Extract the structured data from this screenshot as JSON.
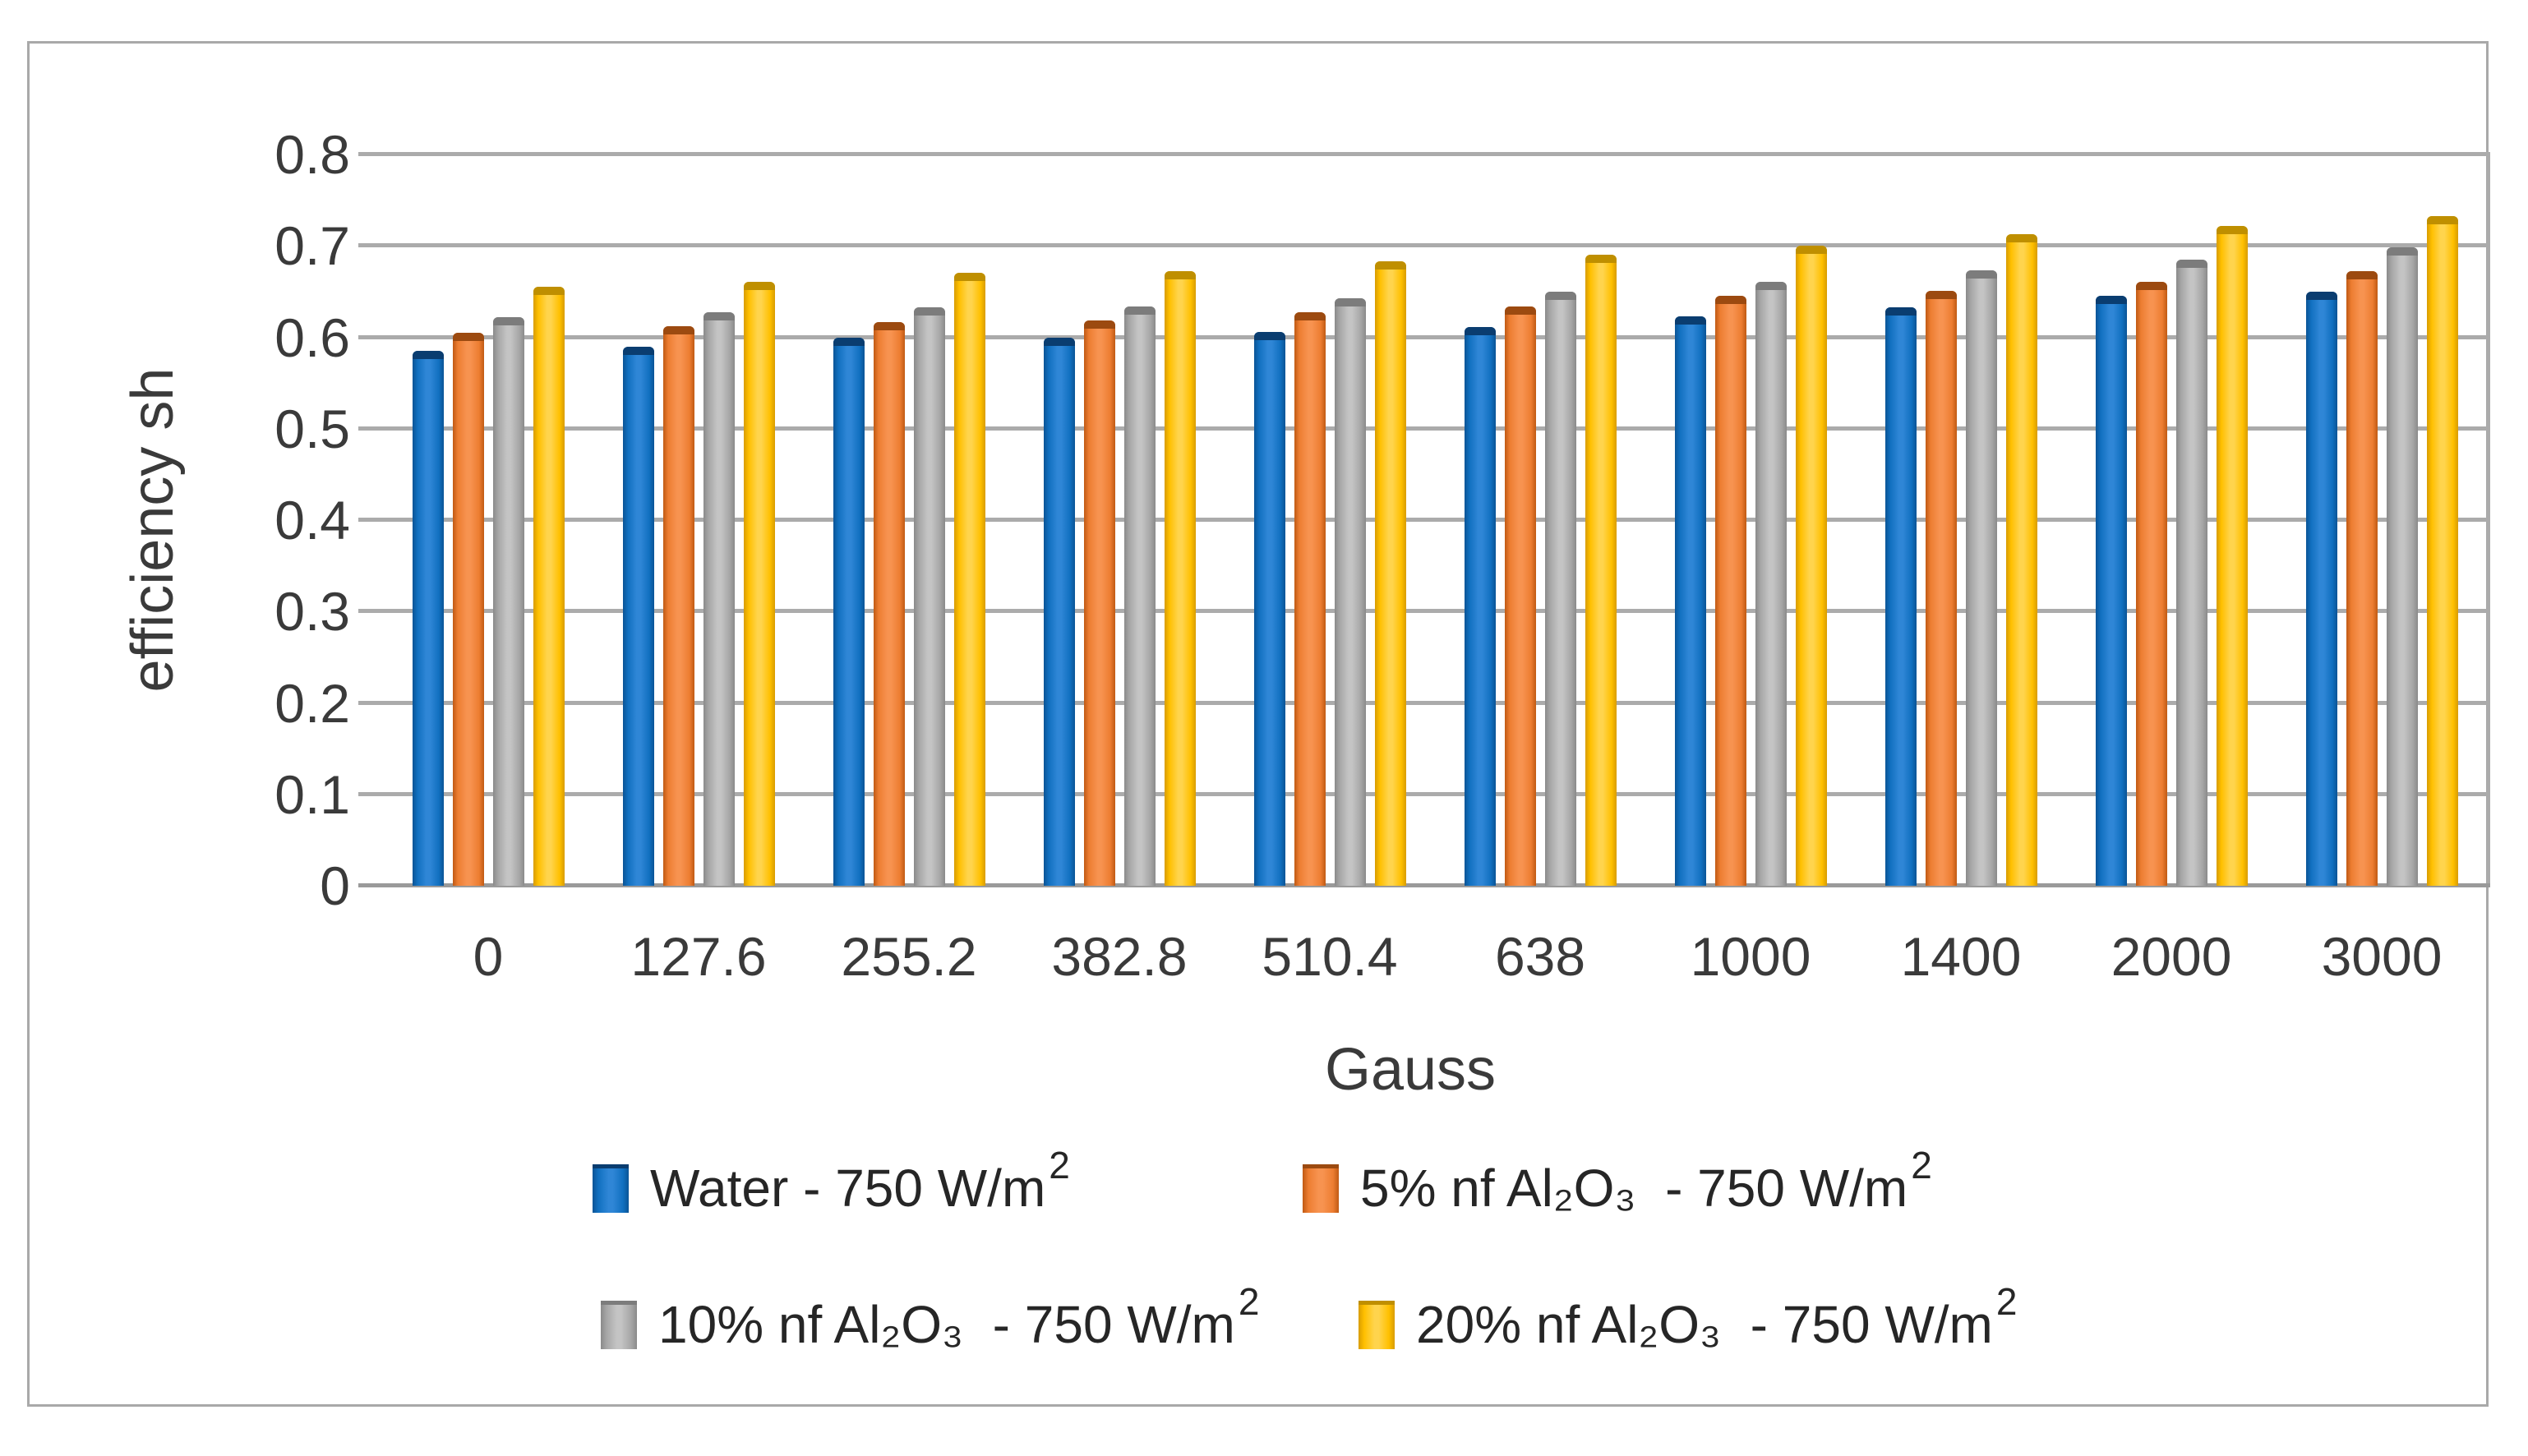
{
  "figure": {
    "background": "#ffffff",
    "frame_border_color": "#a9a9a9"
  },
  "chart_data": {
    "type": "bar",
    "title": "",
    "xlabel": "Gauss",
    "ylabel": "efficiency sh",
    "ylim": [
      0,
      0.8
    ],
    "y_ticks": [
      0,
      0.1,
      0.2,
      0.3,
      0.4,
      0.5,
      0.6,
      0.7,
      0.8
    ],
    "y_tick_labels": [
      "0",
      "0.1",
      "0.2",
      "0.3",
      "0.4",
      "0.5",
      "0.6",
      "0.7",
      "0.8"
    ],
    "grid": true,
    "gridline_color": "#ababab",
    "axis_line_color": "#9a9a9a",
    "tick_label_color": "#3a3a3a",
    "legend_position": "bottom",
    "categories": [
      "0",
      "127.6",
      "255.2",
      "382.8",
      "510.4",
      "638",
      "1000",
      "1400",
      "2000",
      "3000"
    ],
    "series": [
      {
        "name": "Water - 750 W/m²",
        "legend_base": "Water - 750 W/m",
        "legend_sup": "2",
        "color": "#1170c0",
        "color_dark": "#0a5496",
        "color_light": "#2f86d6",
        "color_cap": "#0a3d70",
        "values": [
          0.585,
          0.59,
          0.6,
          0.6,
          0.606,
          0.611,
          0.623,
          0.633,
          0.645,
          0.65
        ]
      },
      {
        "name": "5% nf Al₂O₃ - 750 W/m²",
        "legend_base": "5% nf Al₂O₃  - 750 W/m",
        "legend_sup": "2",
        "color": "#ed7d31",
        "color_dark": "#c05a14",
        "color_light": "#f79350",
        "color_cap": "#9c4a10",
        "values": [
          0.605,
          0.612,
          0.617,
          0.618,
          0.627,
          0.634,
          0.645,
          0.651,
          0.661,
          0.672
        ]
      },
      {
        "name": "10% nf Al₂O₃ - 750 W/m²",
        "legend_base": "10% nf Al₂O₃  - 750 W/m",
        "legend_sup": "2",
        "color": "#a6a6a6",
        "color_dark": "#8a8a8a",
        "color_light": "#c4c4c4",
        "color_cap": "#7c7c7c",
        "values": [
          0.622,
          0.627,
          0.633,
          0.634,
          0.643,
          0.65,
          0.661,
          0.673,
          0.685,
          0.698
        ]
      },
      {
        "name": "20% nf Al₂O₃ - 750 W/m²",
        "legend_base": "20% nf Al₂O₃  - 750 W/m",
        "legend_sup": "2",
        "color": "#ffc000",
        "color_dark": "#d89c00",
        "color_light": "#ffd44d",
        "color_cap": "#bf8f00",
        "values": [
          0.655,
          0.661,
          0.671,
          0.672,
          0.683,
          0.69,
          0.7,
          0.713,
          0.722,
          0.733
        ]
      }
    ]
  }
}
